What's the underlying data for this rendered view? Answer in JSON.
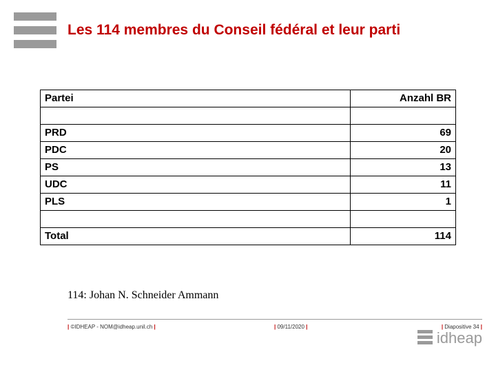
{
  "title": "Les 114 membres du Conseil fédéral et leur parti",
  "table": {
    "headers": {
      "party": "Partei",
      "count": "Anzahl BR"
    },
    "rows": [
      {
        "party": "PRD",
        "count": "69"
      },
      {
        "party": "PDC",
        "count": "20"
      },
      {
        "party": "PS",
        "count": "13"
      },
      {
        "party": "UDC",
        "count": "11"
      },
      {
        "party": "PLS",
        "count": "1"
      }
    ],
    "total": {
      "label": "Total",
      "count": "114"
    }
  },
  "note": "114: Johan N. Schneider Ammann",
  "footer": {
    "left": "©IDHEAP - NOM@idheap.unil.ch",
    "mid": "09/11/2020",
    "right": "Diapositive 34"
  },
  "brand": "idheap",
  "colors": {
    "accent": "#c00000",
    "bar": "#9a9a9a",
    "text": "#000000",
    "background": "#ffffff"
  }
}
